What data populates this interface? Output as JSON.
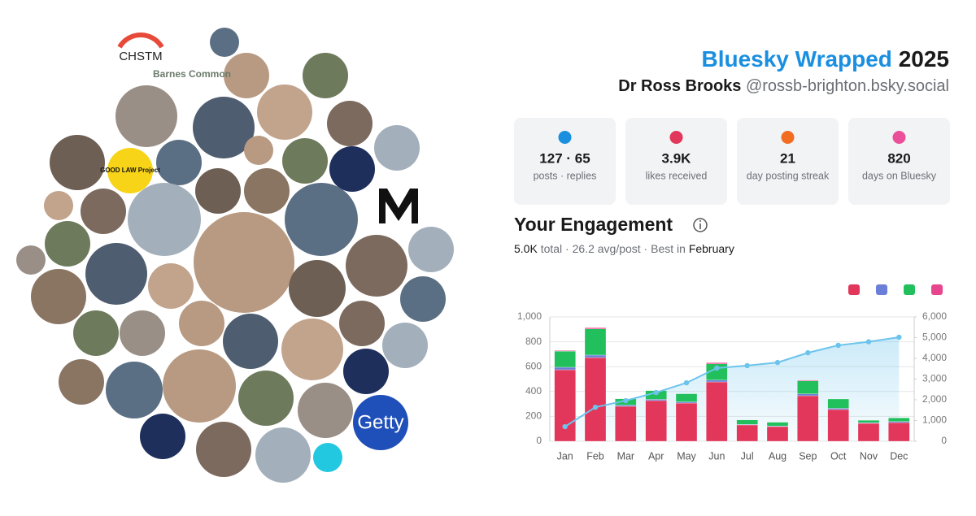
{
  "header": {
    "title": "Bluesky Wrapped",
    "year": "2025",
    "name": "Dr Ross Brooks",
    "handle": "@rossb-brighton.bsky.social"
  },
  "avatars": [
    "CHSTM",
    "Barnes Common",
    "GOOD LAW Project",
    "Getty"
  ],
  "stats": [
    {
      "value": "127 · 65",
      "label": "posts · replies"
    },
    {
      "value": "3.9K",
      "label": "likes received"
    },
    {
      "value": "21",
      "label": "day posting streak"
    },
    {
      "value": "820",
      "label": "days on Bluesky"
    }
  ],
  "engagement": {
    "heading": "Your Engagement",
    "total": "5.0K",
    "summary": "total · 26.2 avg/post · Best in",
    "best": "February"
  },
  "chart_data": {
    "type": "bar",
    "stacked": true,
    "categories": [
      "Jan",
      "Feb",
      "Mar",
      "Apr",
      "May",
      "Jun",
      "Jul",
      "Aug",
      "Sep",
      "Oct",
      "Nov",
      "Dec"
    ],
    "series": [
      {
        "color": "#e2365a",
        "values": [
          575,
          673,
          281,
          327,
          307,
          477,
          131,
          118,
          366,
          255,
          144,
          150
        ]
      },
      {
        "color": "#6c7fd8",
        "values": [
          20,
          20,
          10,
          10,
          10,
          15,
          5,
          5,
          15,
          10,
          5,
          8
        ]
      },
      {
        "color": "#22c05c",
        "values": [
          130,
          210,
          50,
          70,
          65,
          130,
          35,
          30,
          105,
          75,
          20,
          30
        ]
      },
      {
        "color": "#e8458f",
        "values": [
          5,
          10,
          0,
          0,
          0,
          10,
          0,
          0,
          5,
          0,
          0,
          0
        ]
      },
      {
        "type": "line",
        "axis": "y2",
        "color": "#6cc4ec",
        "values": [
          705,
          1640,
          1960,
          2350,
          2820,
          3530,
          3650,
          3800,
          4270,
          4630,
          4800,
          5020
        ]
      }
    ],
    "ylim": [
      0,
      1000
    ],
    "yticks": [
      0,
      200,
      400,
      600,
      800,
      {
        "value": 1000,
        "label": "1,000"
      }
    ],
    "y2lim": [
      0,
      6000
    ],
    "y2ticks": [
      0,
      {
        "value": 1000,
        "label": "1,000"
      },
      {
        "value": 2000,
        "label": "2,000"
      },
      {
        "value": 3000,
        "label": "3,000"
      },
      {
        "value": 4000,
        "label": "4,000"
      },
      {
        "value": 5000,
        "label": "5,000"
      },
      {
        "value": 6000,
        "label": "6,000"
      }
    ],
    "grid": true
  }
}
